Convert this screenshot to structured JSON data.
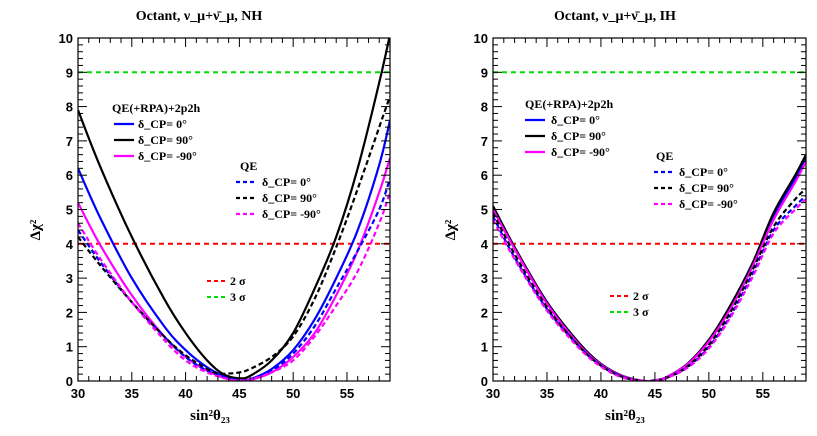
{
  "chart_data": [
    {
      "type": "line",
      "title": "Octant,  ν_μ+ν̄_μ, NH",
      "xlabel": "sin²θ₂₃",
      "ylabel": "Δχ²",
      "xlim": [
        30,
        59
      ],
      "ylim": [
        0,
        10
      ],
      "xticks": [
        30,
        35,
        40,
        45,
        50,
        55
      ],
      "yticks": [
        0,
        1,
        2,
        3,
        4,
        5,
        6,
        7,
        8,
        9,
        10
      ],
      "reference_lines": [
        {
          "name": "2 σ",
          "y": 4,
          "color": "#ff0000",
          "dash": true
        },
        {
          "name": "3 σ",
          "y": 9,
          "color": "#00dd00",
          "dash": true
        }
      ],
      "legend_groups": [
        {
          "header": "QE(+RPA)+2p2h",
          "entries": [
            {
              "label": "δ_CP= 0°",
              "color": "#0000ff",
              "dash": false
            },
            {
              "label": "δ_CP= 90°",
              "color": "#000000",
              "dash": false
            },
            {
              "label": "δ_CP= -90°",
              "color": "#ff00ff",
              "dash": false
            }
          ]
        },
        {
          "header": "QE",
          "entries": [
            {
              "label": "δ_CP= 0°",
              "color": "#0000ff",
              "dash": true
            },
            {
              "label": "δ_CP= 90°",
              "color": "#000000",
              "dash": true
            },
            {
              "label": "δ_CP= -90°",
              "color": "#ff00ff",
              "dash": true
            }
          ]
        }
      ],
      "series": [
        {
          "name": "QE(+RPA)+2p2h δCP=0",
          "color": "#0000ff",
          "dash": false,
          "x": [
            30,
            32,
            35,
            38,
            40,
            42,
            44,
            45,
            46,
            48,
            50,
            52,
            54,
            56,
            58,
            59
          ],
          "y": [
            6.2,
            4.8,
            3.0,
            1.6,
            0.9,
            0.4,
            0.08,
            0.02,
            0.05,
            0.35,
            0.9,
            1.8,
            3.0,
            4.4,
            6.3,
            7.6
          ]
        },
        {
          "name": "QE(+RPA)+2p2h δCP=90",
          "color": "#000000",
          "dash": false,
          "x": [
            30,
            32,
            35,
            38,
            40,
            42,
            43.5,
            45,
            46,
            48,
            50,
            52,
            54,
            56,
            58,
            59
          ],
          "y": [
            7.9,
            6.3,
            4.2,
            2.4,
            1.4,
            0.6,
            0.2,
            0.08,
            0.15,
            0.6,
            1.4,
            2.7,
            4.2,
            6.2,
            8.7,
            10.1
          ]
        },
        {
          "name": "QE(+RPA)+2p2h δCP=-90",
          "color": "#ff00ff",
          "dash": false,
          "x": [
            30,
            32,
            35,
            38,
            40,
            42,
            44,
            45,
            46,
            48,
            50,
            52,
            54,
            56,
            58,
            59
          ],
          "y": [
            5.2,
            4.0,
            2.5,
            1.3,
            0.7,
            0.3,
            0.05,
            0.01,
            0.03,
            0.25,
            0.7,
            1.4,
            2.5,
            3.8,
            5.5,
            6.5
          ]
        },
        {
          "name": "QE δCP=0",
          "color": "#0000ff",
          "dash": true,
          "x": [
            30,
            32,
            35,
            38,
            40,
            42,
            44,
            45,
            46,
            48,
            50,
            52,
            54,
            56,
            58,
            59
          ],
          "y": [
            4.4,
            3.5,
            2.3,
            1.3,
            0.7,
            0.3,
            0.08,
            0.03,
            0.05,
            0.3,
            0.8,
            1.6,
            2.7,
            3.8,
            5.0,
            5.9
          ]
        },
        {
          "name": "QE δCP=90",
          "color": "#000000",
          "dash": true,
          "x": [
            30,
            32,
            35,
            38,
            40,
            42,
            43,
            44,
            45,
            46,
            48,
            50,
            52,
            54,
            56,
            58,
            59
          ],
          "y": [
            4.2,
            3.4,
            2.3,
            1.3,
            0.75,
            0.35,
            0.22,
            0.22,
            0.25,
            0.35,
            0.7,
            1.3,
            2.4,
            3.9,
            5.6,
            7.4,
            8.3
          ]
        },
        {
          "name": "QE δCP=-90",
          "color": "#ff00ff",
          "dash": true,
          "x": [
            30,
            32,
            35,
            38,
            40,
            42,
            44,
            45,
            46,
            48,
            50,
            52,
            54,
            56,
            58,
            59
          ],
          "y": [
            4.6,
            3.6,
            2.3,
            1.2,
            0.6,
            0.25,
            0.05,
            0.02,
            0.04,
            0.25,
            0.6,
            1.3,
            2.2,
            3.2,
            4.6,
            5.5
          ]
        }
      ]
    },
    {
      "type": "line",
      "title": "Octant,  ν_μ+ν̄_μ, IH",
      "xlabel": "sin²θ₂₃",
      "ylabel": "Δχ²",
      "xlim": [
        30,
        59
      ],
      "ylim": [
        0,
        10
      ],
      "xticks": [
        30,
        35,
        40,
        45,
        50,
        55
      ],
      "yticks": [
        0,
        1,
        2,
        3,
        4,
        5,
        6,
        7,
        8,
        9,
        10
      ],
      "reference_lines": [
        {
          "name": "2 σ",
          "y": 4,
          "color": "#ff0000",
          "dash": true
        },
        {
          "name": "3 σ",
          "y": 9,
          "color": "#00dd00",
          "dash": true
        }
      ],
      "legend_groups": [
        {
          "header": "QE(+RPA)+2p2h",
          "entries": [
            {
              "label": "δ_CP= 0°",
              "color": "#0000ff",
              "dash": false
            },
            {
              "label": "δ_CP= 90°",
              "color": "#000000",
              "dash": false
            },
            {
              "label": "δ_CP= -90°",
              "color": "#ff00ff",
              "dash": false
            }
          ]
        },
        {
          "header": "QE",
          "entries": [
            {
              "label": "δ_CP= 0°",
              "color": "#0000ff",
              "dash": true
            },
            {
              "label": "δ_CP= 90°",
              "color": "#000000",
              "dash": true
            },
            {
              "label": "δ_CP= -90°",
              "color": "#ff00ff",
              "dash": true
            }
          ]
        }
      ],
      "series": [
        {
          "name": "QE(+RPA)+2p2h δCP=0",
          "color": "#0000ff",
          "dash": false,
          "x": [
            30,
            32,
            35,
            38,
            40,
            42,
            44,
            45,
            46,
            48,
            50,
            52,
            54,
            56,
            58,
            59
          ],
          "y": [
            5.1,
            3.9,
            2.3,
            1.1,
            0.5,
            0.15,
            0.0,
            0.02,
            0.1,
            0.5,
            1.2,
            2.2,
            3.4,
            4.8,
            5.9,
            6.5
          ]
        },
        {
          "name": "QE(+RPA)+2p2h δCP=90",
          "color": "#000000",
          "dash": false,
          "x": [
            30,
            32,
            35,
            38,
            40,
            42,
            44,
            45,
            46,
            48,
            50,
            52,
            54,
            56,
            58,
            59
          ],
          "y": [
            5.1,
            3.9,
            2.3,
            1.1,
            0.5,
            0.15,
            0.0,
            0.02,
            0.1,
            0.5,
            1.2,
            2.2,
            3.4,
            4.9,
            6.0,
            6.6
          ]
        },
        {
          "name": "QE(+RPA)+2p2h δCP=-90",
          "color": "#ff00ff",
          "dash": false,
          "x": [
            30,
            32,
            35,
            38,
            40,
            42,
            44,
            45,
            46,
            48,
            50,
            52,
            54,
            56,
            58,
            59
          ],
          "y": [
            5.0,
            3.85,
            2.25,
            1.05,
            0.48,
            0.14,
            0.0,
            0.02,
            0.1,
            0.48,
            1.15,
            2.1,
            3.3,
            4.7,
            5.8,
            6.4
          ]
        },
        {
          "name": "QE δCP=0",
          "color": "#0000ff",
          "dash": true,
          "x": [
            30,
            32,
            35,
            38,
            40,
            42,
            44,
            45,
            46,
            48,
            50,
            52,
            54,
            56,
            58,
            59
          ],
          "y": [
            4.8,
            3.6,
            2.1,
            1.0,
            0.45,
            0.12,
            0.0,
            0.02,
            0.08,
            0.4,
            1.0,
            1.9,
            3.1,
            4.4,
            5.1,
            5.4
          ]
        },
        {
          "name": "QE δCP=90",
          "color": "#000000",
          "dash": true,
          "x": [
            30,
            32,
            35,
            38,
            40,
            42,
            44,
            45,
            46,
            48,
            50,
            52,
            54,
            56,
            58,
            59
          ],
          "y": [
            4.9,
            3.7,
            2.15,
            1.0,
            0.45,
            0.12,
            0.0,
            0.02,
            0.08,
            0.42,
            1.05,
            2.0,
            3.2,
            4.5,
            5.3,
            5.6
          ]
        },
        {
          "name": "QE δCP=-90",
          "color": "#ff00ff",
          "dash": true,
          "x": [
            30,
            32,
            35,
            38,
            40,
            42,
            44,
            45,
            46,
            48,
            50,
            52,
            54,
            56,
            58,
            59
          ],
          "y": [
            4.7,
            3.55,
            2.05,
            0.95,
            0.42,
            0.1,
            0.0,
            0.02,
            0.08,
            0.38,
            0.95,
            1.85,
            3.0,
            4.3,
            5.0,
            5.3
          ]
        }
      ]
    }
  ]
}
